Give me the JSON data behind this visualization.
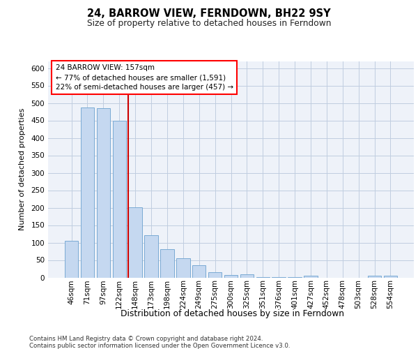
{
  "title": "24, BARROW VIEW, FERNDOWN, BH22 9SY",
  "subtitle": "Size of property relative to detached houses in Ferndown",
  "xlabel": "Distribution of detached houses by size in Ferndown",
  "ylabel": "Number of detached properties",
  "categories": [
    "46sqm",
    "71sqm",
    "97sqm",
    "122sqm",
    "148sqm",
    "173sqm",
    "198sqm",
    "224sqm",
    "249sqm",
    "275sqm",
    "300sqm",
    "325sqm",
    "351sqm",
    "376sqm",
    "401sqm",
    "427sqm",
    "452sqm",
    "478sqm",
    "503sqm",
    "528sqm",
    "554sqm"
  ],
  "values": [
    105,
    487,
    485,
    450,
    202,
    122,
    82,
    55,
    35,
    15,
    8,
    10,
    2,
    2,
    2,
    5,
    0,
    0,
    0,
    6,
    6
  ],
  "bar_color": "#c5d8f0",
  "bar_edge_color": "#7aaad4",
  "vline_color": "#cc0000",
  "annotation_title": "24 BARROW VIEW: 157sqm",
  "annotation_line1": "← 77% of detached houses are smaller (1,591)",
  "annotation_line2": "22% of semi-detached houses are larger (457) →",
  "ylim": [
    0,
    620
  ],
  "yticks": [
    0,
    50,
    100,
    150,
    200,
    250,
    300,
    350,
    400,
    450,
    500,
    550,
    600
  ],
  "footer1": "Contains HM Land Registry data © Crown copyright and database right 2024.",
  "footer2": "Contains public sector information licensed under the Open Government Licence v3.0.",
  "bg_color": "#eef2f9",
  "grid_color": "#c0cde0"
}
